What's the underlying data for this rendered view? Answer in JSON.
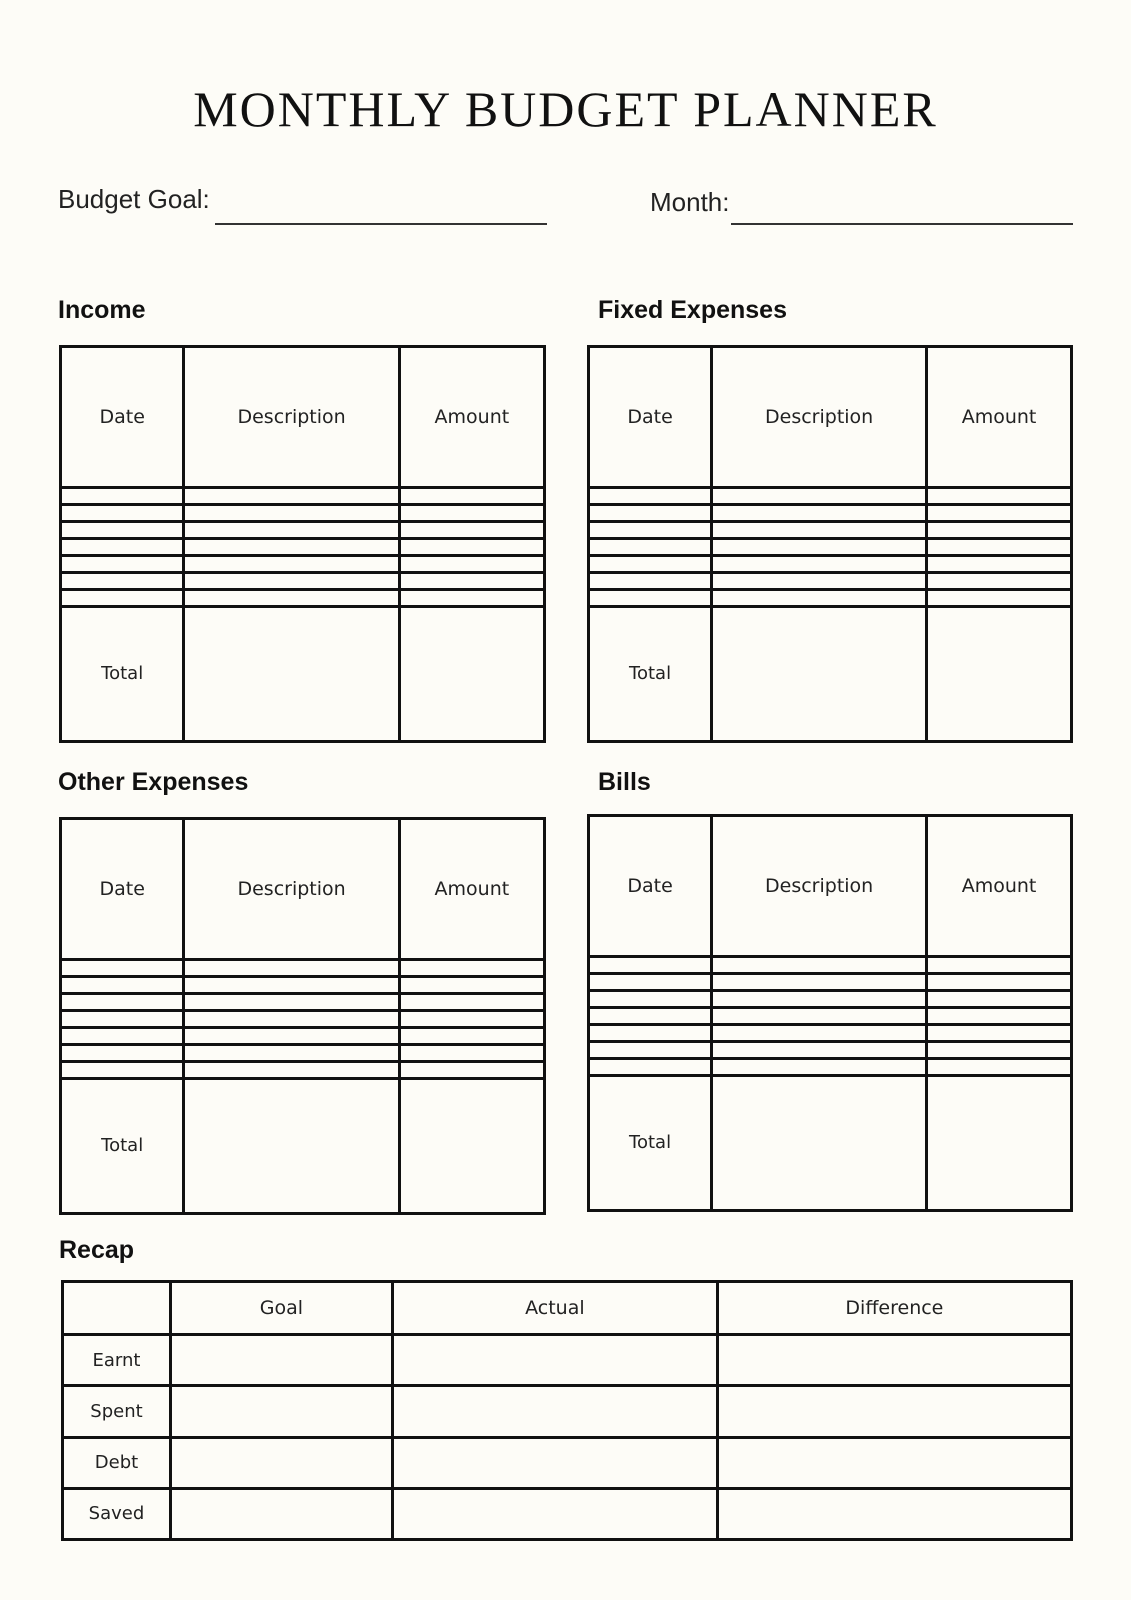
{
  "title": "MONTHLY BUDGET PLANNER",
  "fields": {
    "budget_goal_label": "Budget Goal:",
    "budget_goal_value": "",
    "month_label": "Month:",
    "month_value": ""
  },
  "sections": {
    "income": {
      "heading": "Income",
      "columns": [
        "Date",
        "Description",
        "Amount"
      ],
      "total_label": "Total"
    },
    "fixed_expenses": {
      "heading": "Fixed Expenses",
      "columns": [
        "Date",
        "Description",
        "Amount"
      ],
      "total_label": "Total"
    },
    "other_expenses": {
      "heading": "Other Expenses",
      "columns": [
        "Date",
        "Description",
        "Amount"
      ],
      "total_label": "Total"
    },
    "bills": {
      "heading": "Bills",
      "columns": [
        "Date",
        "Description",
        "Amount"
      ],
      "total_label": "Total"
    }
  },
  "recap": {
    "heading": "Recap",
    "columns": [
      "",
      "Goal",
      "Actual",
      "Difference"
    ],
    "rows": [
      "Earnt",
      "Spent",
      "Debt",
      "Saved"
    ]
  }
}
